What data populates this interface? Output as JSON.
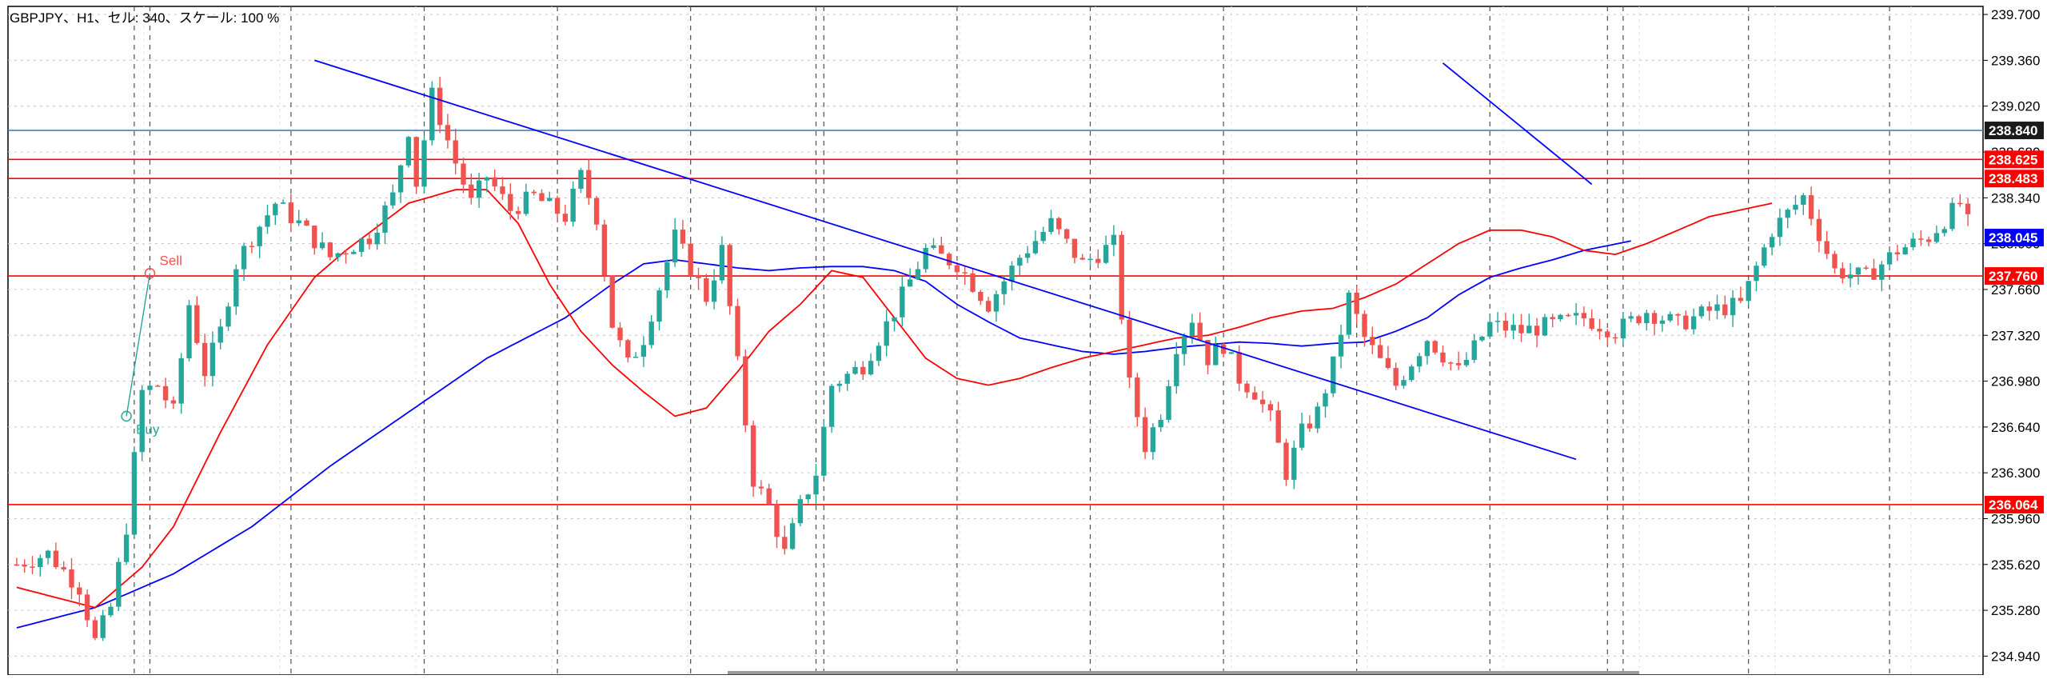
{
  "chart_data": {
    "type": "candlestick",
    "title": "GBPJPY、H1、セル: 340、スケール: 100 %",
    "ylim": [
      234.8,
      239.76
    ],
    "yticks": [
      "239.700",
      "239.360",
      "239.020",
      "238.680",
      "238.340",
      "238.000",
      "237.660",
      "237.320",
      "236.980",
      "236.640",
      "236.300",
      "235.960",
      "235.620",
      "235.280",
      "234.940"
    ],
    "grid": true,
    "bars_visible": 250,
    "colors": {
      "up": "#26a69a",
      "down": "#ef5350",
      "ma_fast": "#ff0000",
      "ma_slow": "#0000ff",
      "trendline": "#0000ff",
      "hline_red": "#ff0000",
      "hline_blue": "#4682b4",
      "grid": "#c8c8c8",
      "vline": "#505050"
    },
    "candle_anchors": [
      [
        0,
        235.62
      ],
      [
        4,
        235.7
      ],
      [
        8,
        235.45
      ],
      [
        10,
        235.05
      ],
      [
        12,
        235.3
      ],
      [
        14,
        235.9
      ],
      [
        16,
        236.9
      ],
      [
        18,
        236.95
      ],
      [
        20,
        236.75
      ],
      [
        22,
        237.55
      ],
      [
        24,
        237.05
      ],
      [
        26,
        237.35
      ],
      [
        28,
        237.85
      ],
      [
        30,
        238.05
      ],
      [
        33,
        238.3
      ],
      [
        36,
        238.15
      ],
      [
        40,
        237.9
      ],
      [
        45,
        238.05
      ],
      [
        48,
        238.35
      ],
      [
        50,
        238.85
      ],
      [
        51,
        238.45
      ],
      [
        53,
        239.1
      ],
      [
        56,
        238.6
      ],
      [
        58,
        238.3
      ],
      [
        60,
        238.5
      ],
      [
        63,
        238.25
      ],
      [
        66,
        238.35
      ],
      [
        70,
        238.2
      ],
      [
        72,
        238.5
      ],
      [
        74,
        238.2
      ],
      [
        76,
        237.4
      ],
      [
        78,
        237.1
      ],
      [
        80,
        237.3
      ],
      [
        84,
        238.05
      ],
      [
        88,
        237.6
      ],
      [
        90,
        237.95
      ],
      [
        92,
        237.1
      ],
      [
        94,
        236.25
      ],
      [
        96,
        236.05
      ],
      [
        98,
        235.7
      ],
      [
        100,
        236.05
      ],
      [
        102,
        236.3
      ],
      [
        104,
        236.95
      ],
      [
        108,
        237.1
      ],
      [
        112,
        237.5
      ],
      [
        116,
        237.95
      ],
      [
        120,
        237.85
      ],
      [
        124,
        237.55
      ],
      [
        128,
        237.9
      ],
      [
        132,
        238.15
      ],
      [
        136,
        237.85
      ],
      [
        140,
        238.0
      ],
      [
        142,
        236.95
      ],
      [
        144,
        236.5
      ],
      [
        146,
        236.75
      ],
      [
        148,
        237.25
      ],
      [
        150,
        237.45
      ],
      [
        152,
        237.15
      ],
      [
        154,
        237.25
      ],
      [
        156,
        237.0
      ],
      [
        158,
        236.9
      ],
      [
        160,
        236.7
      ],
      [
        162,
        236.3
      ],
      [
        164,
        236.6
      ],
      [
        166,
        236.75
      ],
      [
        168,
        237.1
      ],
      [
        170,
        237.6
      ],
      [
        172,
        237.3
      ],
      [
        176,
        236.95
      ],
      [
        180,
        237.3
      ],
      [
        184,
        237.05
      ],
      [
        188,
        237.4
      ],
      [
        192,
        237.35
      ],
      [
        196,
        237.4
      ],
      [
        200,
        237.45
      ],
      [
        204,
        237.35
      ],
      [
        208,
        237.5
      ],
      [
        212,
        237.4
      ],
      [
        216,
        237.5
      ],
      [
        220,
        237.55
      ],
      [
        224,
        238.1
      ],
      [
        228,
        238.35
      ],
      [
        232,
        237.8
      ],
      [
        236,
        237.75
      ],
      [
        240,
        237.95
      ],
      [
        244,
        238.05
      ],
      [
        248,
        238.3
      ],
      [
        250,
        238.0
      ]
    ],
    "ma_fast_anchors": [
      [
        0,
        235.45
      ],
      [
        10,
        235.3
      ],
      [
        16,
        235.6
      ],
      [
        20,
        235.9
      ],
      [
        26,
        236.6
      ],
      [
        32,
        237.25
      ],
      [
        38,
        237.75
      ],
      [
        42,
        237.95
      ],
      [
        50,
        238.3
      ],
      [
        56,
        238.4
      ],
      [
        60,
        238.4
      ],
      [
        64,
        238.15
      ],
      [
        68,
        237.7
      ],
      [
        72,
        237.35
      ],
      [
        76,
        237.1
      ],
      [
        80,
        236.9
      ],
      [
        84,
        236.72
      ],
      [
        88,
        236.78
      ],
      [
        92,
        237.05
      ],
      [
        96,
        237.35
      ],
      [
        100,
        237.55
      ],
      [
        104,
        237.8
      ],
      [
        108,
        237.75
      ],
      [
        112,
        237.45
      ],
      [
        116,
        237.15
      ],
      [
        120,
        237.0
      ],
      [
        124,
        236.95
      ],
      [
        128,
        237.0
      ],
      [
        132,
        237.08
      ],
      [
        136,
        237.15
      ],
      [
        140,
        237.2
      ],
      [
        144,
        237.25
      ],
      [
        148,
        237.3
      ],
      [
        152,
        237.32
      ],
      [
        156,
        237.38
      ],
      [
        160,
        237.45
      ],
      [
        164,
        237.5
      ],
      [
        168,
        237.52
      ],
      [
        172,
        237.6
      ],
      [
        176,
        237.7
      ],
      [
        180,
        237.85
      ],
      [
        184,
        238.0
      ],
      [
        188,
        238.1
      ],
      [
        192,
        238.1
      ],
      [
        196,
        238.05
      ],
      [
        200,
        237.95
      ],
      [
        204,
        237.92
      ],
      [
        208,
        238.0
      ],
      [
        212,
        238.1
      ],
      [
        216,
        238.2
      ],
      [
        220,
        238.25
      ],
      [
        224,
        238.3
      ]
    ],
    "ma_slow_anchors": [
      [
        0,
        235.15
      ],
      [
        10,
        235.3
      ],
      [
        20,
        235.55
      ],
      [
        30,
        235.9
      ],
      [
        40,
        236.35
      ],
      [
        50,
        236.75
      ],
      [
        60,
        237.15
      ],
      [
        70,
        237.45
      ],
      [
        76,
        237.7
      ],
      [
        80,
        237.85
      ],
      [
        84,
        237.88
      ],
      [
        88,
        237.85
      ],
      [
        92,
        237.82
      ],
      [
        96,
        237.8
      ],
      [
        100,
        237.82
      ],
      [
        104,
        237.83
      ],
      [
        108,
        237.83
      ],
      [
        112,
        237.8
      ],
      [
        116,
        237.72
      ],
      [
        120,
        237.55
      ],
      [
        124,
        237.42
      ],
      [
        128,
        237.3
      ],
      [
        132,
        237.25
      ],
      [
        136,
        237.2
      ],
      [
        140,
        237.18
      ],
      [
        144,
        237.2
      ],
      [
        148,
        237.23
      ],
      [
        152,
        237.25
      ],
      [
        156,
        237.27
      ],
      [
        160,
        237.26
      ],
      [
        164,
        237.24
      ],
      [
        168,
        237.26
      ],
      [
        172,
        237.27
      ],
      [
        176,
        237.35
      ],
      [
        180,
        237.45
      ],
      [
        184,
        237.62
      ],
      [
        188,
        237.75
      ],
      [
        192,
        237.82
      ],
      [
        196,
        237.88
      ],
      [
        200,
        237.95
      ],
      [
        206,
        238.02
      ]
    ],
    "trendlines": [
      {
        "from": [
          38,
          239.36
        ],
        "to": [
          199,
          236.4
        ]
      },
      {
        "from": [
          182,
          239.34
        ],
        "to": [
          201,
          238.44
        ]
      }
    ],
    "horizontal_lines": [
      {
        "price": 238.84,
        "color": "#4682b4",
        "label": "238.840",
        "label_bg": "#1a1a1a"
      },
      {
        "price": 238.625,
        "color": "#ff0000",
        "label": "238.625",
        "label_bg": "#ff0000"
      },
      {
        "price": 238.483,
        "color": "#ff0000",
        "label": "238.483",
        "label_bg": "#ff0000"
      },
      {
        "price": 237.76,
        "color": "#ff0000",
        "label": "237.760",
        "label_bg": "#ff0000"
      },
      {
        "price": 236.064,
        "color": "#ff0000",
        "label": "236.064",
        "label_bg": "#ff0000"
      }
    ],
    "price_tags": [
      {
        "price": 238.045,
        "label": "238.045",
        "label_bg": "#0000ff"
      }
    ],
    "trade_markers": [
      {
        "label": "Buy",
        "bar": 14,
        "price": 236.72,
        "color": "#26a69a"
      },
      {
        "label": "Sell",
        "bar": 17,
        "price": 237.78,
        "color": "#ef5350"
      }
    ],
    "session_lines_bars": [
      15,
      17,
      35,
      52,
      69,
      86,
      102,
      103,
      120,
      137,
      154,
      171,
      188,
      203,
      205,
      221,
      239
    ]
  }
}
